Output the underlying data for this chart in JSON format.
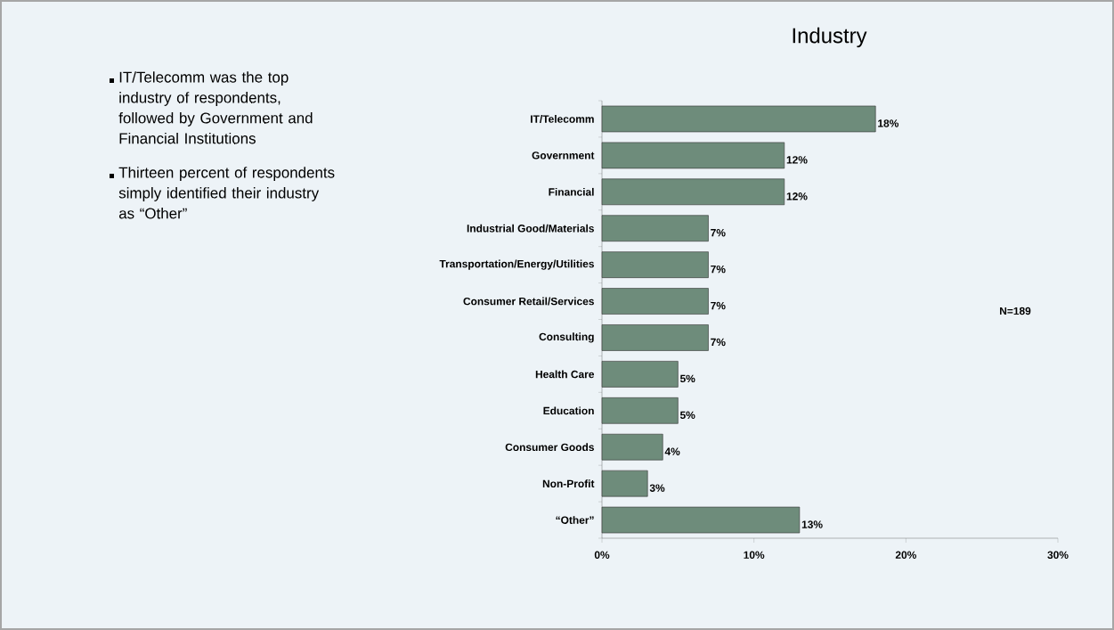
{
  "chart_data": {
    "type": "bar",
    "orientation": "horizontal",
    "title": "Industry",
    "categories": [
      "IT/Telecomm",
      "Government",
      "Financial",
      "Industrial Good/Materials",
      "Transportation/Energy/Utilities",
      "Consumer Retail/Services",
      "Consulting",
      "Health Care",
      "Education",
      "Consumer Goods",
      "Non-Profit",
      "“Other”"
    ],
    "values": [
      18,
      12,
      12,
      7,
      7,
      7,
      7,
      5,
      5,
      4,
      3,
      13
    ],
    "value_labels": [
      "18%",
      "12%",
      "12%",
      "7%",
      "7%",
      "7%",
      "7%",
      "5%",
      "5%",
      "4%",
      "3%",
      "13%"
    ],
    "color": "#6e8c7b",
    "xlim": [
      0,
      30
    ],
    "xticks": [
      {
        "value": 0,
        "label": "0%"
      },
      {
        "value": 10,
        "label": "10%"
      },
      {
        "value": 20,
        "label": "20%"
      },
      {
        "value": 30,
        "label": "30%"
      }
    ],
    "annotations": [
      "IT/Telecomm was the top industry of respondents, followed by Government and Financial Institutions",
      "Thirteen percent of respondents simply identified their industry as “Other”",
      "N=189"
    ]
  }
}
